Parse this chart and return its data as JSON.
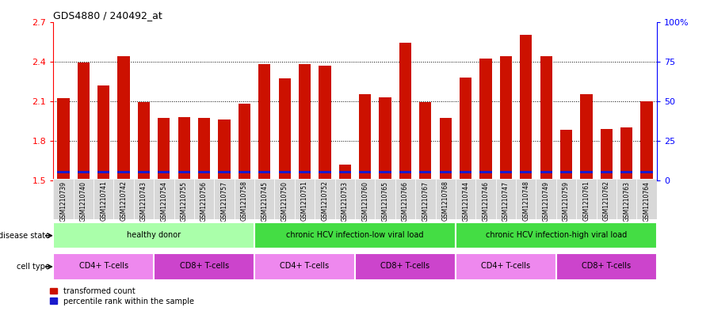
{
  "title": "GDS4880 / 240492_at",
  "samples": [
    "GSM1210739",
    "GSM1210740",
    "GSM1210741",
    "GSM1210742",
    "GSM1210743",
    "GSM1210754",
    "GSM1210755",
    "GSM1210756",
    "GSM1210757",
    "GSM1210758",
    "GSM1210745",
    "GSM1210750",
    "GSM1210751",
    "GSM1210752",
    "GSM1210753",
    "GSM1210760",
    "GSM1210765",
    "GSM1210766",
    "GSM1210767",
    "GSM1210768",
    "GSM1210744",
    "GSM1210746",
    "GSM1210747",
    "GSM1210748",
    "GSM1210749",
    "GSM1210759",
    "GSM1210761",
    "GSM1210762",
    "GSM1210763",
    "GSM1210764"
  ],
  "red_values": [
    2.12,
    2.39,
    2.22,
    2.44,
    2.09,
    1.97,
    1.98,
    1.97,
    1.96,
    2.08,
    2.38,
    2.27,
    2.38,
    2.37,
    1.62,
    2.15,
    2.13,
    2.54,
    2.09,
    1.97,
    2.28,
    2.42,
    2.44,
    2.6,
    2.44,
    1.88,
    2.15,
    1.89,
    1.9,
    2.1
  ],
  "ymin": 1.5,
  "ymax": 2.7,
  "yticks": [
    1.5,
    1.8,
    2.1,
    2.4,
    2.7
  ],
  "right_yticks": [
    0,
    25,
    50,
    75,
    100
  ],
  "right_yticklabels": [
    "0",
    "25",
    "50",
    "75",
    "100%"
  ],
  "bar_color_red": "#cc1100",
  "bar_color_blue": "#1a1acc",
  "disease_groups": [
    {
      "label": "healthy donor",
      "start": 0,
      "end": 9,
      "color": "#ccffcc"
    },
    {
      "label": "chronic HCV infection-low viral load",
      "start": 10,
      "end": 19,
      "color": "#55dd55"
    },
    {
      "label": "chronic HCV infection-high viral load",
      "start": 20,
      "end": 29,
      "color": "#55dd55"
    }
  ],
  "cell_groups": [
    {
      "label": "CD4+ T-cells",
      "start": 0,
      "end": 4,
      "color": "#ee88ee"
    },
    {
      "label": "CD8+ T-cells",
      "start": 5,
      "end": 9,
      "color": "#cc44cc"
    },
    {
      "label": "CD4+ T-cells",
      "start": 10,
      "end": 14,
      "color": "#ee88ee"
    },
    {
      "label": "CD8+ T-cells",
      "start": 15,
      "end": 19,
      "color": "#cc44cc"
    },
    {
      "label": "CD4+ T-cells",
      "start": 20,
      "end": 24,
      "color": "#ee88ee"
    },
    {
      "label": "CD8+ T-cells",
      "start": 25,
      "end": 29,
      "color": "#cc44cc"
    }
  ],
  "disease_state_label": "disease state",
  "cell_type_label": "cell type",
  "legend_red": "transformed count",
  "legend_blue": "percentile rank within the sample"
}
